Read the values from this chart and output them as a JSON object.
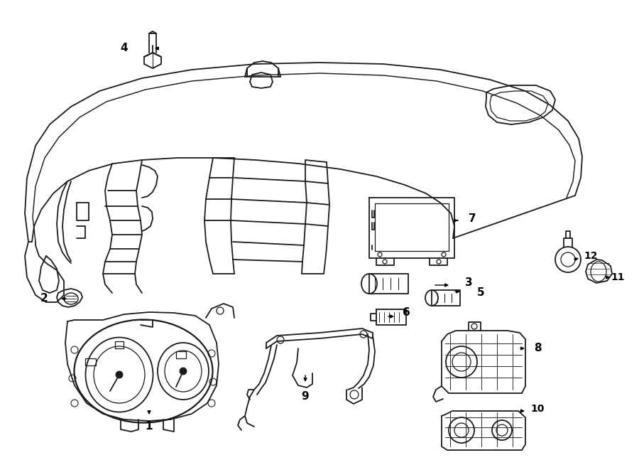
{
  "bg_color": "#ffffff",
  "lc": "#1a1a1a",
  "lw": 1.3,
  "fig_w": 9.0,
  "fig_h": 6.61,
  "dpi": 100,
  "xlim": [
    0,
    900
  ],
  "ylim": [
    0,
    661
  ]
}
